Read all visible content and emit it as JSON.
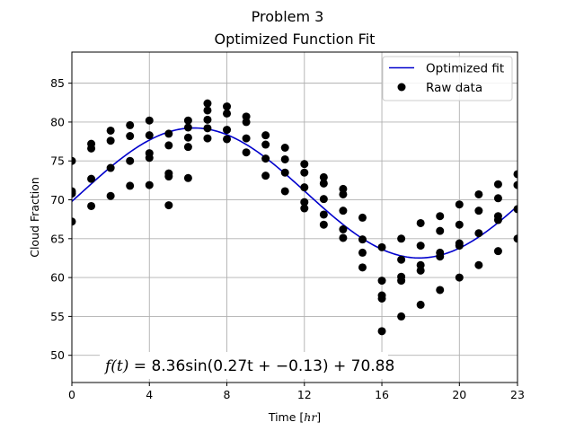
{
  "figure": {
    "suptitle": "Problem 3",
    "annotation_prefix": "f(t) = ",
    "annotation_formula": "8.36sin(0.27t + −0.13) + 70.88"
  },
  "chart_data": {
    "type": "scatter",
    "title": "Optimized Function Fit",
    "xlabel_text": "Time [",
    "xlabel_unit": "hr",
    "xlabel_close": "]",
    "ylabel": "Cloud Fraction",
    "xlim": [
      0,
      23
    ],
    "ylim": [
      46.5,
      89
    ],
    "xticks": [
      0,
      4,
      8,
      12,
      16,
      20,
      23
    ],
    "yticks": [
      50,
      55,
      60,
      65,
      70,
      75,
      80,
      85
    ],
    "grid": true,
    "legend_position": "upper-right",
    "colors": {
      "fit": "#0000cc",
      "data": "#000000",
      "grid": "#b0b0b0"
    },
    "fit": {
      "name": "Optimized fit",
      "amplitude": 8.36,
      "frequency": 0.27,
      "phase": -0.13,
      "offset": 70.88
    },
    "raw_data": {
      "name": "Raw data",
      "points": [
        [
          0,
          67.2
        ],
        [
          0,
          70.8
        ],
        [
          0,
          71.1
        ],
        [
          0,
          75.0
        ],
        [
          1,
          69.2
        ],
        [
          1,
          72.7
        ],
        [
          1,
          76.6
        ],
        [
          1,
          77.2
        ],
        [
          2,
          70.5
        ],
        [
          2,
          74.1
        ],
        [
          2,
          77.6
        ],
        [
          2,
          78.9
        ],
        [
          3,
          71.8
        ],
        [
          3,
          75.0
        ],
        [
          3,
          78.2
        ],
        [
          3,
          79.6
        ],
        [
          4,
          71.9
        ],
        [
          4,
          75.4
        ],
        [
          4,
          76.0
        ],
        [
          4,
          78.3
        ],
        [
          4,
          80.2
        ],
        [
          5,
          69.3
        ],
        [
          5,
          73.0
        ],
        [
          5,
          73.4
        ],
        [
          5,
          77.0
        ],
        [
          5,
          78.5
        ],
        [
          6,
          72.8
        ],
        [
          6,
          76.8
        ],
        [
          6,
          78.0
        ],
        [
          6,
          79.3
        ],
        [
          6,
          80.2
        ],
        [
          7,
          77.9
        ],
        [
          7,
          79.2
        ],
        [
          7,
          80.3
        ],
        [
          7,
          81.5
        ],
        [
          7,
          82.4
        ],
        [
          8,
          77.8
        ],
        [
          8,
          79.0
        ],
        [
          8,
          81.1
        ],
        [
          8,
          82.0
        ],
        [
          9,
          76.1
        ],
        [
          9,
          77.9
        ],
        [
          9,
          80.0
        ],
        [
          9,
          80.7
        ],
        [
          10,
          73.1
        ],
        [
          10,
          75.3
        ],
        [
          10,
          77.1
        ],
        [
          10,
          78.3
        ],
        [
          11,
          71.1
        ],
        [
          11,
          73.5
        ],
        [
          11,
          75.2
        ],
        [
          11,
          76.7
        ],
        [
          12,
          68.9
        ],
        [
          12,
          69.7
        ],
        [
          12,
          71.6
        ],
        [
          12,
          73.5
        ],
        [
          12,
          74.6
        ],
        [
          13,
          66.8
        ],
        [
          13,
          68.1
        ],
        [
          13,
          70.1
        ],
        [
          13,
          72.1
        ],
        [
          13,
          72.9
        ],
        [
          14,
          65.1
        ],
        [
          14,
          66.2
        ],
        [
          14,
          68.6
        ],
        [
          14,
          70.7
        ],
        [
          14,
          71.4
        ],
        [
          15,
          61.3
        ],
        [
          15,
          63.2
        ],
        [
          15,
          64.9
        ],
        [
          15,
          67.7
        ],
        [
          16,
          53.1
        ],
        [
          16,
          57.3
        ],
        [
          16,
          57.7
        ],
        [
          16,
          59.6
        ],
        [
          16,
          63.9
        ],
        [
          17,
          55.0
        ],
        [
          17,
          59.6
        ],
        [
          17,
          60.1
        ],
        [
          17,
          62.3
        ],
        [
          17,
          65.0
        ],
        [
          18,
          56.5
        ],
        [
          18,
          60.9
        ],
        [
          18,
          61.6
        ],
        [
          18,
          64.1
        ],
        [
          18,
          67.0
        ],
        [
          19,
          58.4
        ],
        [
          19,
          62.7
        ],
        [
          19,
          63.2
        ],
        [
          19,
          66.0
        ],
        [
          19,
          67.9
        ],
        [
          20,
          60.0
        ],
        [
          20,
          64.1
        ],
        [
          20,
          64.4
        ],
        [
          20,
          66.8
        ],
        [
          20,
          69.4
        ],
        [
          21,
          61.6
        ],
        [
          21,
          65.7
        ],
        [
          21,
          68.6
        ],
        [
          21,
          70.7
        ],
        [
          22,
          63.4
        ],
        [
          22,
          67.4
        ],
        [
          22,
          67.9
        ],
        [
          22,
          70.2
        ],
        [
          22,
          72.0
        ],
        [
          23,
          65.0
        ],
        [
          23,
          68.8
        ],
        [
          23,
          71.9
        ],
        [
          23,
          73.3
        ]
      ]
    }
  }
}
